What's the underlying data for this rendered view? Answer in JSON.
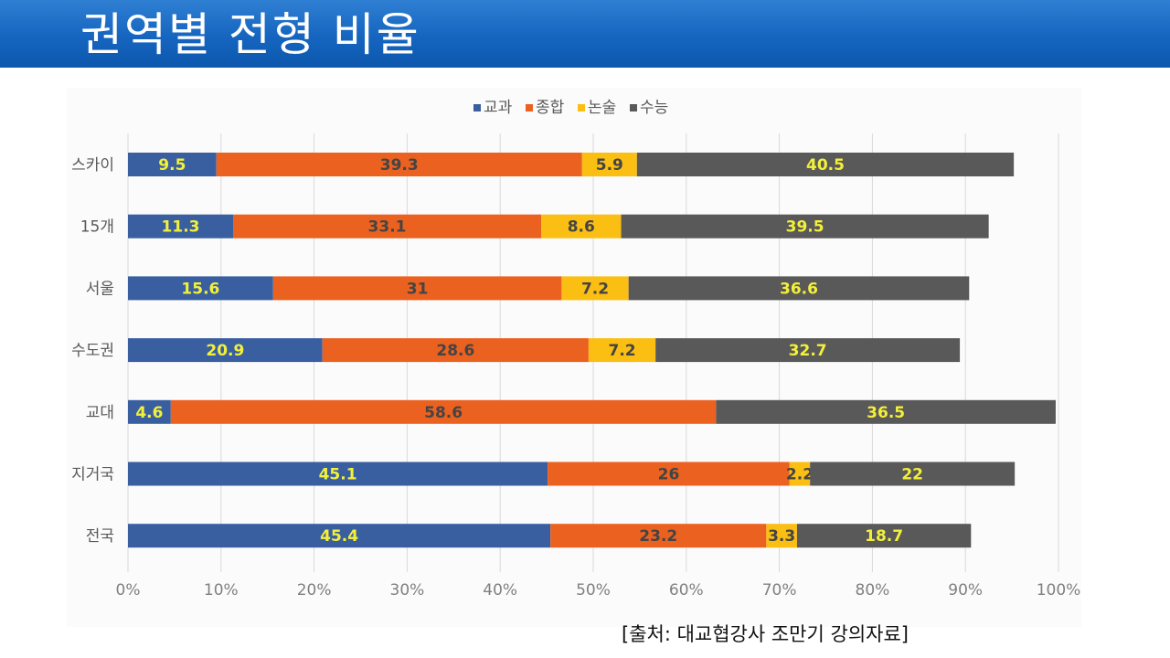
{
  "page": {
    "title": "권역별 전형 비율",
    "source": "[출처: 대교협강사 조만기 강의자료]"
  },
  "chart_data": {
    "type": "bar",
    "orientation": "horizontal",
    "stacked": "percent",
    "legend_position": "top",
    "grid": true,
    "categories": [
      "스카이",
      "15개",
      "서울",
      "수도권",
      "교대",
      "지거국",
      "전국"
    ],
    "xlim": [
      0,
      100
    ],
    "x_ticks": [
      "0%",
      "10%",
      "20%",
      "30%",
      "40%",
      "50%",
      "60%",
      "70%",
      "80%",
      "90%",
      "100%"
    ],
    "series": [
      {
        "name": "교과",
        "color": "#3a5fa0",
        "label_color": "#f3f03a",
        "values": [
          9.5,
          11.3,
          15.6,
          20.9,
          4.6,
          45.1,
          45.4
        ]
      },
      {
        "name": "종합",
        "color": "#eb6120",
        "label_color": "#444444",
        "values": [
          39.3,
          33.1,
          31,
          28.6,
          58.6,
          26,
          23.2
        ]
      },
      {
        "name": "논술",
        "color": "#fbbe13",
        "label_color": "#444444",
        "values": [
          5.9,
          8.6,
          7.2,
          7.2,
          null,
          2.2,
          3.3
        ]
      },
      {
        "name": "수능",
        "color": "#595959",
        "label_color": "#f3f03a",
        "values": [
          40.5,
          39.5,
          36.6,
          32.7,
          36.5,
          22,
          18.7
        ]
      }
    ]
  }
}
